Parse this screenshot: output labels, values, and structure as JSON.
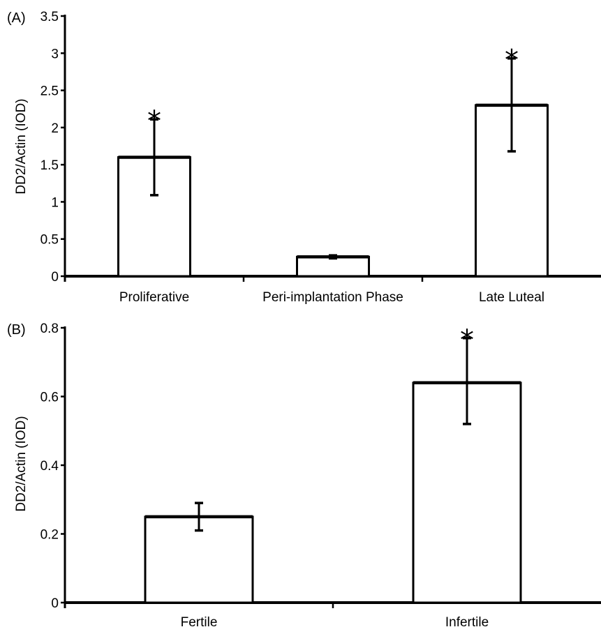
{
  "chart_data": [
    {
      "panel_label": "(A)",
      "type": "bar",
      "ylabel": "DD2/Actin (IOD)",
      "ylim": [
        0,
        3.5
      ],
      "yticks": [
        "0",
        "0.5",
        "1",
        "1.5",
        "2",
        "2.5",
        "3",
        "3.5"
      ],
      "categories": [
        "Proliferative",
        "Peri-implantation Phase",
        "Late Luteal"
      ],
      "values": [
        1.6,
        0.26,
        2.3
      ],
      "error_low": [
        1.09,
        0.24,
        1.68
      ],
      "error_high": [
        2.11,
        0.28,
        2.93
      ],
      "significance_marks": [
        "*",
        "",
        "*"
      ],
      "grid": false,
      "bar_fill": "#ffffff",
      "bar_stroke": "#000000"
    },
    {
      "panel_label": "(B)",
      "type": "bar",
      "ylabel": "DD2/Actin (IOD)",
      "ylim": [
        0,
        0.8
      ],
      "yticks": [
        "0",
        "0.2",
        "0.4",
        "0.6",
        "0.8"
      ],
      "categories": [
        "Fertile",
        "Infertile"
      ],
      "values": [
        0.25,
        0.64
      ],
      "error_low": [
        0.21,
        0.52
      ],
      "error_high": [
        0.29,
        0.77
      ],
      "significance_marks": [
        "",
        "*"
      ],
      "grid": false,
      "bar_fill": "#ffffff",
      "bar_stroke": "#000000"
    }
  ]
}
